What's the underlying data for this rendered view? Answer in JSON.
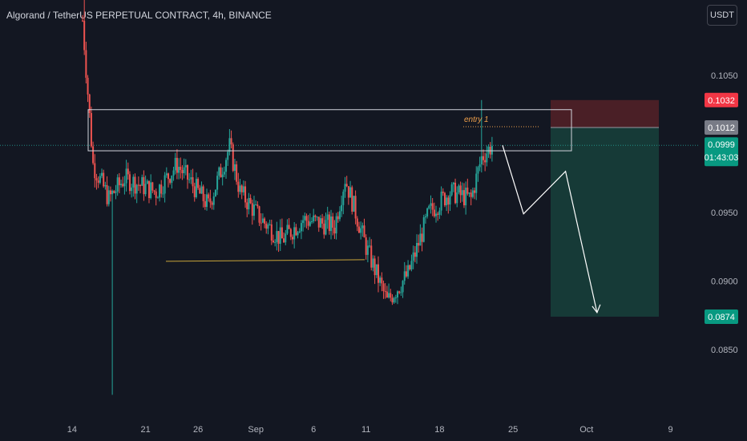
{
  "header": {
    "title": "Algorand / TetherUS PERPETUAL CONTRACT, 4h, BINANCE",
    "currency": "USDT"
  },
  "colors": {
    "background": "#131722",
    "up": "#26a69a",
    "down": "#ef5350",
    "stop_zone": "#4a1f26",
    "target_zone": "#163a37",
    "last_price_line": "#26a69a",
    "support_line": "#c9a53a",
    "entry_line": "#f0a04b",
    "badge_stop": "#f23645",
    "badge_entry": "#787b86",
    "badge_current": "#089981",
    "badge_target": "#089981"
  },
  "chart_data": {
    "type": "candlestick",
    "title": "Algorand / TetherUS PERPETUAL CONTRACT, 4h, BINANCE",
    "interval": "4h",
    "y_ticks": [
      "0.1050",
      "0.0950",
      "0.0900",
      "0.0850"
    ],
    "ylim": [
      0.0813,
      0.1112
    ],
    "x_ticks": [
      "14",
      "21",
      "26",
      "Sep",
      "6",
      "11",
      "18",
      "25",
      "Oct",
      "9"
    ],
    "anchors": [
      {
        "day": 0,
        "label": "Aug 15",
        "price": 0.109
      },
      {
        "day": 1,
        "label": "Aug 17",
        "price": 0.0985
      },
      {
        "day": 2.5,
        "label": "Aug 18",
        "price": 0.096
      },
      {
        "day": 4,
        "label": "Aug 19",
        "price": 0.0975
      },
      {
        "day": 7,
        "label": "Aug 22",
        "price": 0.0965
      },
      {
        "day": 9,
        "label": "Aug 24",
        "price": 0.0985
      },
      {
        "day": 12,
        "label": "Aug 27",
        "price": 0.0955
      },
      {
        "day": 14,
        "label": "Aug 29",
        "price": 0.0998
      },
      {
        "day": 15,
        "label": "Aug 30",
        "price": 0.0965
      },
      {
        "day": 17,
        "label": "Sep 1",
        "price": 0.0945
      },
      {
        "day": 19,
        "label": "Sep 3",
        "price": 0.093
      },
      {
        "day": 21,
        "label": "Sep 5",
        "price": 0.0945
      },
      {
        "day": 24,
        "label": "Sep 8",
        "price": 0.094
      },
      {
        "day": 25,
        "label": "Sep 9",
        "price": 0.0975
      },
      {
        "day": 27,
        "label": "Sep 11",
        "price": 0.0925
      },
      {
        "day": 29,
        "label": "Sep 13",
        "price": 0.0885
      },
      {
        "day": 31,
        "label": "Sep 15",
        "price": 0.0905
      },
      {
        "day": 33,
        "label": "Sep 17",
        "price": 0.095
      },
      {
        "day": 35,
        "label": "Sep 19",
        "price": 0.0965
      },
      {
        "day": 37,
        "label": "Sep 21",
        "price": 0.096
      },
      {
        "day": 38,
        "label": "Sep 22",
        "price": 0.099
      },
      {
        "day": 39,
        "label": "Sep 23",
        "price": 0.0999
      }
    ],
    "wick_extremes": {
      "spike_high": 0.1112,
      "spike_low": 0.0817,
      "entry_wick_high": 0.1032
    },
    "levels": {
      "stop": "0.1032",
      "entry": "0.1012",
      "current": "0.0999",
      "countdown": "01:43:03",
      "target": "0.0874"
    },
    "annotations": {
      "entry_label": "entry 1"
    },
    "resistance_zone": [
      0.0995,
      0.1025
    ],
    "support_line_price": 0.0915,
    "projection_path": [
      {
        "date": "Sep 23",
        "price": 0.0999
      },
      {
        "date": "Sep 25",
        "price": 0.0949
      },
      {
        "date": "Sep 29",
        "price": 0.098
      },
      {
        "date": "Oct 2",
        "price": 0.0877
      }
    ],
    "position": {
      "stop": 0.1032,
      "entry": 0.1012,
      "target": 0.0874
    }
  }
}
